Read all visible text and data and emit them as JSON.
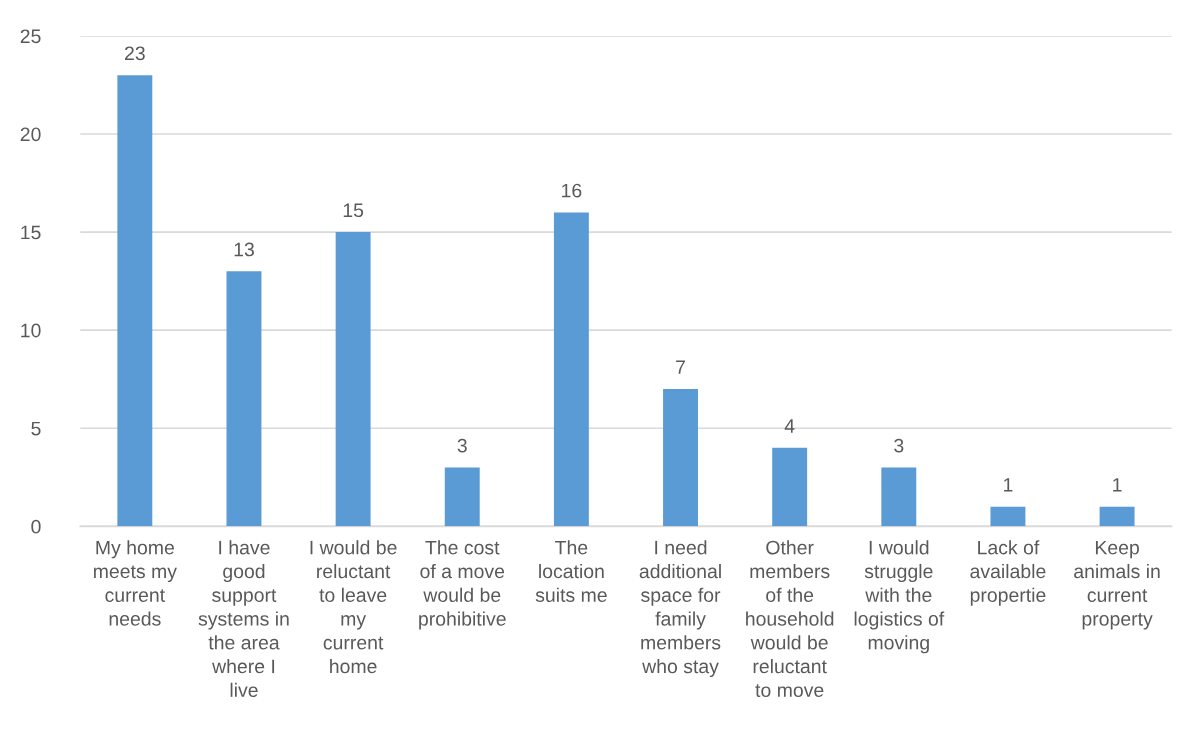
{
  "chart_data": {
    "type": "bar",
    "categories": [
      "My home\nmeets my\ncurrent\nneeds",
      "I have\ngood\nsupport\nsystems in\nthe area\nwhere I\nlive",
      "I would be\nreluctant\nto leave\nmy\ncurrent\nhome",
      "The cost\nof a move\nwould be\nprohibitive",
      "The\nlocation\nsuits me",
      "I need\nadditional\nspace for\nfamily\nmembers\nwho stay",
      "Other\nmembers\nof the\nhousehold\nwould be\nreluctant\nto move",
      "I would\nstruggle\nwith the\nlogistics of\nmoving",
      "Lack of\navailable\npropertie",
      "Keep\nanimals in\ncurrent\nproperty"
    ],
    "values": [
      23,
      13,
      15,
      3,
      16,
      7,
      4,
      3,
      1,
      1
    ],
    "color": "#5b9bd5",
    "ylim": [
      0,
      25
    ],
    "yticks": [
      0,
      5,
      10,
      15,
      20,
      25
    ],
    "grid": "y",
    "data_labels": true
  }
}
